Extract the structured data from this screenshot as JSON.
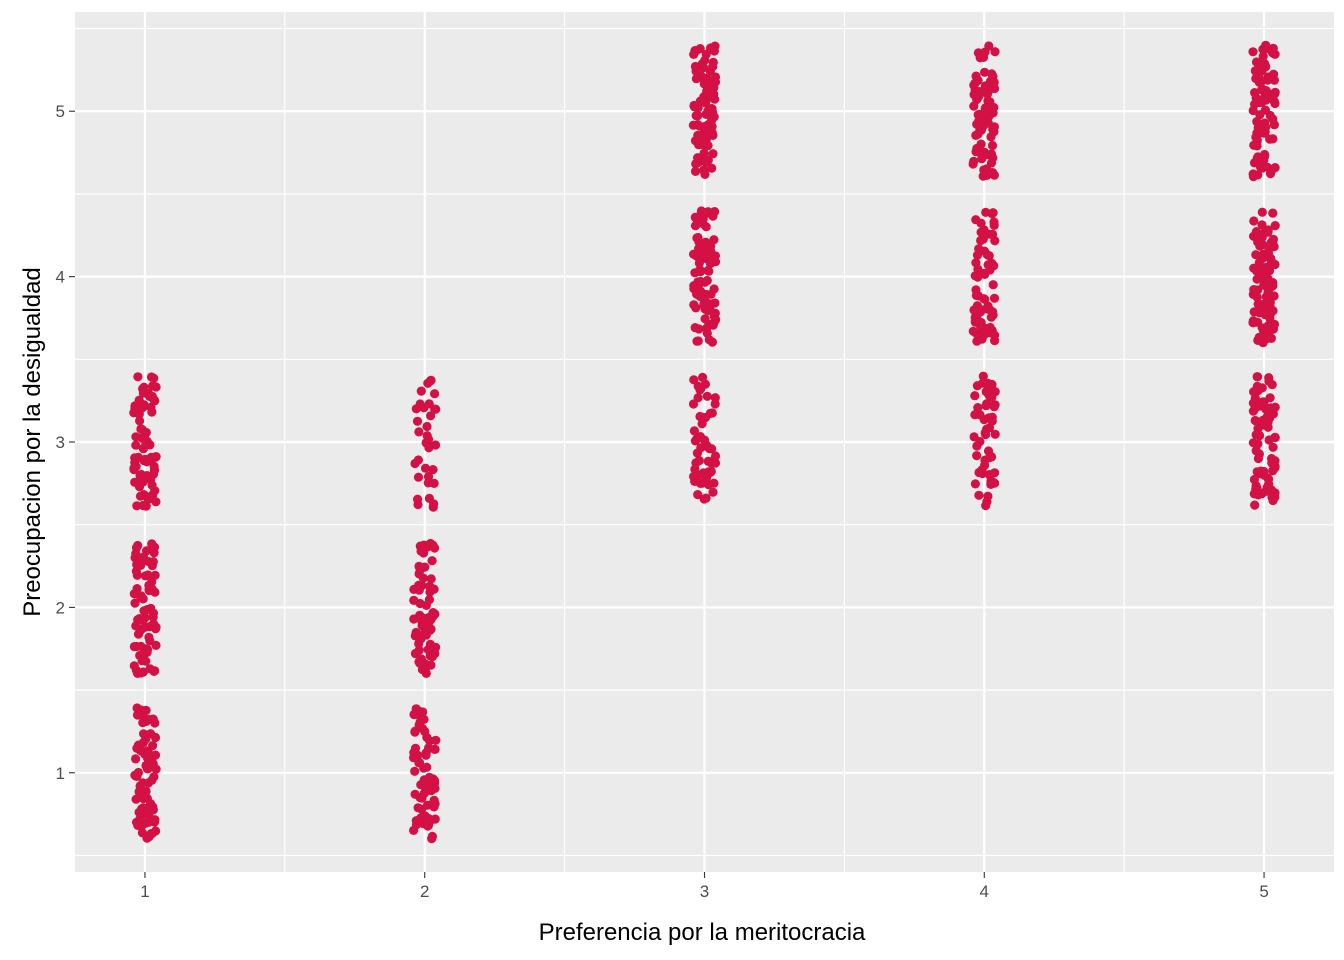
{
  "chart_data": {
    "type": "scatter",
    "title": "",
    "xlabel": "Preferencia por la meritocracia",
    "ylabel": "Preocupacion por la desigualdad",
    "xlim": [
      0.75,
      5.25
    ],
    "ylim": [
      0.4,
      5.6
    ],
    "x_ticks": [
      1,
      2,
      3,
      4,
      5
    ],
    "y_ticks": [
      1,
      2,
      3,
      4,
      5
    ],
    "x_tick_labels": [
      "1",
      "2",
      "3",
      "4",
      "5"
    ],
    "y_tick_labels": [
      "1",
      "2",
      "3",
      "4",
      "5"
    ],
    "grid": true,
    "background": "#EBEBEB",
    "point_color": "#D31145",
    "jitter": {
      "x": 0.04,
      "y": 0.4
    },
    "clusters": [
      {
        "x": 1,
        "y": 1,
        "n": 80
      },
      {
        "x": 1,
        "y": 2,
        "n": 75
      },
      {
        "x": 1,
        "y": 3,
        "n": 75
      },
      {
        "x": 2,
        "y": 1,
        "n": 70
      },
      {
        "x": 2,
        "y": 2,
        "n": 70
      },
      {
        "x": 2,
        "y": 3,
        "n": 35
      },
      {
        "x": 3,
        "y": 3,
        "n": 55
      },
      {
        "x": 3,
        "y": 4,
        "n": 85
      },
      {
        "x": 3,
        "y": 5,
        "n": 80
      },
      {
        "x": 4,
        "y": 3,
        "n": 55
      },
      {
        "x": 4,
        "y": 4,
        "n": 70
      },
      {
        "x": 4,
        "y": 5,
        "n": 85
      },
      {
        "x": 5,
        "y": 3,
        "n": 75
      },
      {
        "x": 5,
        "y": 4,
        "n": 90
      },
      {
        "x": 5,
        "y": 5,
        "n": 85
      }
    ]
  }
}
